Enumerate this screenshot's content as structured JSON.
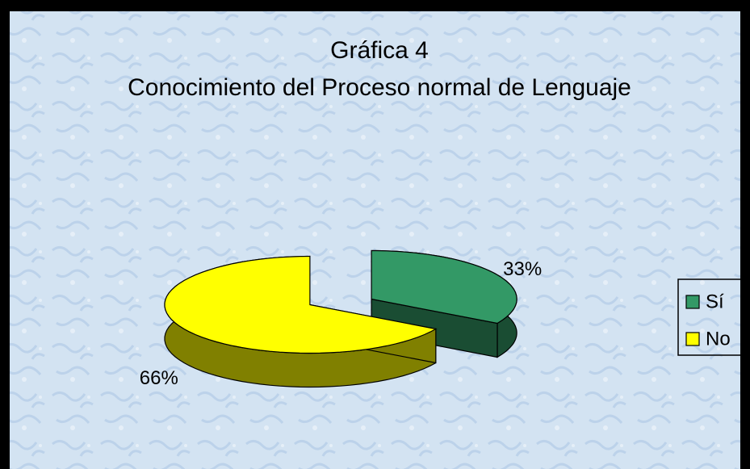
{
  "chart_data": {
    "type": "pie",
    "title": "Gráfica 4",
    "subtitle": "Conocimiento del Proceso normal de Lenguaje",
    "categories": [
      "Sí",
      "No"
    ],
    "values": [
      33,
      66
    ],
    "value_labels": [
      "33%",
      "66%"
    ],
    "colors": [
      "#339966",
      "#ffff00"
    ],
    "legend": "right"
  }
}
